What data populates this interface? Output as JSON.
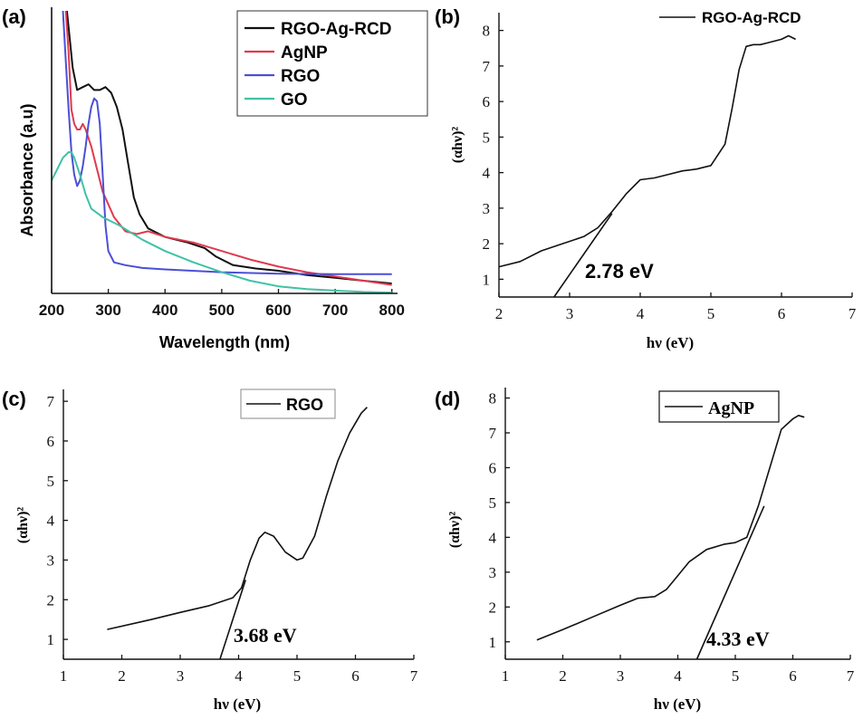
{
  "colors": {
    "rgo_ag_rcd": "#111111",
    "agnp": "#e03a4e",
    "rgo": "#4b4fd6",
    "go": "#3fc2a5",
    "axis": "#111111",
    "background": "#ffffff"
  },
  "chart_data": [
    {
      "id": "a",
      "panel_label": "(a)",
      "type": "line",
      "xlabel": "Wavelength (nm)",
      "ylabel": "Absorbance (a.u)",
      "xlim": [
        200,
        810
      ],
      "ylim": [
        0,
        1
      ],
      "xticks": [
        200,
        300,
        400,
        500,
        600,
        700,
        800
      ],
      "legend_position": "top-right",
      "series": [
        {
          "name": "RGO-Ag-RCD",
          "color_key": "rgo_ag_rcd",
          "x": [
            227,
            233,
            237,
            245,
            255,
            265,
            275,
            285,
            295,
            305,
            315,
            325,
            335,
            345,
            355,
            370,
            400,
            440,
            470,
            490,
            520,
            560,
            600,
            650,
            700,
            750,
            800
          ],
          "y": [
            1.0,
            0.88,
            0.8,
            0.72,
            0.73,
            0.74,
            0.72,
            0.72,
            0.73,
            0.71,
            0.66,
            0.58,
            0.46,
            0.34,
            0.28,
            0.23,
            0.2,
            0.18,
            0.16,
            0.13,
            0.1,
            0.088,
            0.08,
            0.065,
            0.055,
            0.045,
            0.035
          ]
        },
        {
          "name": "AgNP",
          "color_key": "agnp",
          "x": [
            225,
            230,
            235,
            240,
            245,
            250,
            255,
            260,
            270,
            280,
            290,
            310,
            330,
            350,
            370,
            400,
            450,
            500,
            550,
            600,
            650,
            700,
            750,
            800
          ],
          "y": [
            1.0,
            0.85,
            0.65,
            0.6,
            0.58,
            0.58,
            0.6,
            0.58,
            0.52,
            0.44,
            0.36,
            0.27,
            0.22,
            0.21,
            0.22,
            0.2,
            0.18,
            0.15,
            0.12,
            0.095,
            0.075,
            0.06,
            0.045,
            0.03
          ]
        },
        {
          "name": "RGO",
          "color_key": "rgo",
          "x": [
            220,
            225,
            230,
            235,
            240,
            245,
            250,
            255,
            260,
            265,
            270,
            275,
            280,
            285,
            290,
            295,
            300,
            310,
            330,
            360,
            400,
            500,
            600,
            700,
            800
          ],
          "y": [
            1.0,
            0.82,
            0.65,
            0.5,
            0.42,
            0.38,
            0.4,
            0.45,
            0.52,
            0.6,
            0.66,
            0.69,
            0.68,
            0.6,
            0.42,
            0.24,
            0.15,
            0.11,
            0.1,
            0.09,
            0.085,
            0.075,
            0.07,
            0.068,
            0.068
          ]
        },
        {
          "name": "GO",
          "color_key": "go",
          "x": [
            200,
            210,
            220,
            230,
            235,
            240,
            250,
            260,
            270,
            290,
            320,
            360,
            400,
            450,
            500,
            550,
            600,
            650,
            700,
            750,
            800
          ],
          "y": [
            0.4,
            0.44,
            0.48,
            0.5,
            0.5,
            0.48,
            0.42,
            0.35,
            0.3,
            0.27,
            0.24,
            0.19,
            0.15,
            0.11,
            0.075,
            0.045,
            0.025,
            0.015,
            0.01,
            0.005,
            0.003
          ]
        }
      ]
    },
    {
      "id": "b",
      "panel_label": "(b)",
      "type": "line",
      "xlabel": "hν (eV)",
      "ylabel": "(αhν)²",
      "xlim": [
        2,
        7
      ],
      "ylim": [
        0.5,
        8.5
      ],
      "xticks": [
        2,
        3,
        4,
        5,
        6,
        7
      ],
      "yticks": [
        1,
        2,
        3,
        4,
        5,
        6,
        7,
        8
      ],
      "legend": "RGO-Ag-RCD",
      "annotation": "2.78 eV",
      "series": [
        {
          "name": "RGO-Ag-RCD",
          "x": [
            2.0,
            2.3,
            2.6,
            2.9,
            3.2,
            3.4,
            3.6,
            3.8,
            4.0,
            4.2,
            4.4,
            4.6,
            4.8,
            5.0,
            5.2,
            5.3,
            5.4,
            5.5,
            5.6,
            5.7,
            5.8,
            5.9,
            6.0,
            6.1,
            6.2
          ],
          "y": [
            1.35,
            1.5,
            1.8,
            2.0,
            2.2,
            2.45,
            2.9,
            3.4,
            3.8,
            3.85,
            3.95,
            4.05,
            4.1,
            4.2,
            4.8,
            5.8,
            6.9,
            7.55,
            7.6,
            7.6,
            7.65,
            7.7,
            7.75,
            7.85,
            7.75
          ]
        },
        {
          "name": "tangent",
          "x": [
            2.78,
            3.6
          ],
          "y": [
            0.5,
            2.85
          ]
        }
      ]
    },
    {
      "id": "c",
      "panel_label": "(c)",
      "type": "line",
      "xlabel": "hν (eV)",
      "ylabel": "(αhν)²",
      "xlim": [
        1,
        7
      ],
      "ylim": [
        0.5,
        7.3
      ],
      "xticks": [
        1,
        2,
        3,
        4,
        5,
        6,
        7
      ],
      "yticks": [
        1,
        2,
        3,
        4,
        5,
        6,
        7
      ],
      "legend": "RGO",
      "annotation": "3.68 eV",
      "series": [
        {
          "name": "RGO",
          "x": [
            1.75,
            2.5,
            3.0,
            3.5,
            3.9,
            4.05,
            4.2,
            4.35,
            4.45,
            4.6,
            4.8,
            5.0,
            5.1,
            5.3,
            5.5,
            5.7,
            5.9,
            6.1,
            6.2
          ],
          "y": [
            1.25,
            1.5,
            1.68,
            1.85,
            2.05,
            2.3,
            3.0,
            3.55,
            3.7,
            3.6,
            3.2,
            3.0,
            3.05,
            3.6,
            4.6,
            5.5,
            6.2,
            6.7,
            6.85
          ]
        },
        {
          "name": "tangent",
          "x": [
            3.68,
            4.12
          ],
          "y": [
            0.5,
            2.5
          ]
        }
      ]
    },
    {
      "id": "d",
      "panel_label": "(d)",
      "type": "line",
      "xlabel": "hν (eV)",
      "ylabel": "(αhν)²",
      "xlim": [
        1,
        7
      ],
      "ylim": [
        0.5,
        8.3
      ],
      "xticks": [
        1,
        2,
        3,
        4,
        5,
        6,
        7
      ],
      "yticks": [
        1,
        2,
        3,
        4,
        5,
        6,
        7,
        8
      ],
      "legend": "AgNP",
      "annotation": "4.33 eV",
      "series": [
        {
          "name": "AgNP",
          "x": [
            1.55,
            2.0,
            2.5,
            3.0,
            3.3,
            3.6,
            3.8,
            4.0,
            4.2,
            4.5,
            4.8,
            5.0,
            5.2,
            5.4,
            5.6,
            5.8,
            6.0,
            6.1,
            6.2
          ],
          "y": [
            1.05,
            1.35,
            1.7,
            2.05,
            2.25,
            2.3,
            2.5,
            2.9,
            3.3,
            3.65,
            3.8,
            3.85,
            4.0,
            4.9,
            6.0,
            7.1,
            7.4,
            7.5,
            7.45
          ]
        },
        {
          "name": "tangent",
          "x": [
            4.33,
            5.5
          ],
          "y": [
            0.5,
            4.9
          ]
        }
      ]
    }
  ]
}
